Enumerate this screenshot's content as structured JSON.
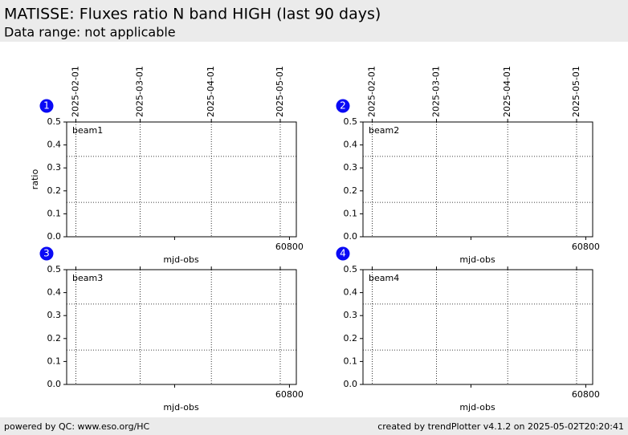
{
  "header": {
    "title": "MATISSE: Fluxes ratio N band HIGH (last 90 days)",
    "subtitle": "Data range: not applicable"
  },
  "chart_data": [
    {
      "type": "line",
      "panel_label": "1",
      "annotation": "beam1",
      "xlabel": "mjd-obs",
      "ylabel": "ratio",
      "xlim": [
        60703,
        60803
      ],
      "ylim": [
        0,
        0.5
      ],
      "xticks": [
        {
          "value": 60750,
          "label": null
        },
        60800
      ],
      "yticks": [
        {
          "value": 0,
          "label": "0.0"
        },
        0.1,
        0.2,
        0.3,
        0.4,
        0.5
      ],
      "x2ticks": [
        {
          "value": 60707,
          "label": "2025-02-01"
        },
        {
          "value": 60735,
          "label": "2025-03-01"
        },
        {
          "value": 60766,
          "label": "2025-04-01"
        },
        {
          "value": 60796,
          "label": "2025-05-01"
        }
      ],
      "hlines": [
        0.15,
        0.35
      ],
      "grid": true,
      "series": []
    },
    {
      "type": "line",
      "panel_label": "2",
      "annotation": "beam2",
      "xlabel": "mjd-obs",
      "xlim": [
        60703,
        60803
      ],
      "ylim": [
        0,
        0.5
      ],
      "xticks": [
        {
          "value": 60750,
          "label": null
        },
        60800
      ],
      "yticks": [
        {
          "value": 0,
          "label": "0.0"
        },
        0.1,
        0.2,
        0.3,
        0.4,
        0.5
      ],
      "x2ticks": [
        {
          "value": 60707,
          "label": "2025-02-01"
        },
        {
          "value": 60735,
          "label": "2025-03-01"
        },
        {
          "value": 60766,
          "label": "2025-04-01"
        },
        {
          "value": 60796,
          "label": "2025-05-01"
        }
      ],
      "hlines": [
        0.15,
        0.35
      ],
      "grid": true,
      "series": []
    },
    {
      "type": "line",
      "panel_label": "3",
      "annotation": "beam3",
      "xlabel": "mjd-obs",
      "xlim": [
        60703,
        60803
      ],
      "ylim": [
        0,
        0.5
      ],
      "xticks": [
        {
          "value": 60750,
          "label": null
        },
        60800
      ],
      "yticks": [
        {
          "value": 0,
          "label": "0.0"
        },
        0.1,
        0.2,
        0.3,
        0.4,
        0.5
      ],
      "x2ticks": [
        {
          "value": 60707,
          "label": null
        },
        {
          "value": 60735,
          "label": null
        },
        {
          "value": 60766,
          "label": null
        },
        {
          "value": 60796,
          "label": null
        }
      ],
      "hlines": [
        0.15,
        0.35
      ],
      "grid": true,
      "series": []
    },
    {
      "type": "line",
      "panel_label": "4",
      "annotation": "beam4",
      "xlabel": "mjd-obs",
      "xlim": [
        60703,
        60803
      ],
      "ylim": [
        0,
        0.5
      ],
      "xticks": [
        {
          "value": 60750,
          "label": null
        },
        60800
      ],
      "yticks": [
        {
          "value": 0,
          "label": "0.0"
        },
        0.1,
        0.2,
        0.3,
        0.4,
        0.5
      ],
      "x2ticks": [
        {
          "value": 60707,
          "label": null
        },
        {
          "value": 60735,
          "label": null
        },
        {
          "value": 60766,
          "label": null
        },
        {
          "value": 60796,
          "label": null
        }
      ],
      "hlines": [
        0.15,
        0.35
      ],
      "grid": true,
      "series": []
    }
  ],
  "footer": {
    "left": "powered by QC: www.eso.org/HC",
    "right": "created by trendPlotter v4.1.2 on 2025-05-02T20:20:41"
  }
}
